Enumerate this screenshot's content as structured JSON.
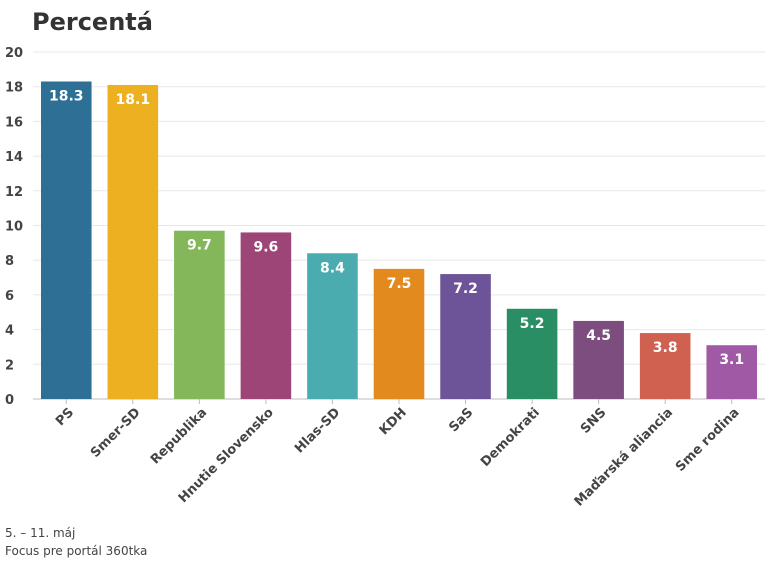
{
  "title": "Percentá",
  "footer": {
    "date": "5. – 11. máj",
    "source": "Focus pre portál 360tka"
  },
  "chart_data": {
    "type": "bar",
    "title": "Percentá",
    "xlabel": "",
    "ylabel": "",
    "ylim": [
      0,
      20
    ],
    "yticks": [
      0,
      2,
      4,
      6,
      8,
      10,
      12,
      14,
      16,
      18,
      20
    ],
    "grid": true,
    "categories": [
      "PS",
      "Smer-SD",
      "Republika",
      "Hnutie Slovensko",
      "Hlas-SD",
      "KDH",
      "SaS",
      "Demokrati",
      "SNS",
      "Maďarská aliancia",
      "Sme rodina"
    ],
    "values": [
      18.3,
      18.1,
      9.7,
      9.6,
      8.4,
      7.5,
      7.2,
      5.2,
      4.5,
      3.8,
      3.1
    ],
    "value_labels": [
      "18.3",
      "18.1",
      "9.7",
      "9.6",
      "8.4",
      "7.5",
      "7.2",
      "5.2",
      "4.5",
      "3.8",
      "3.1"
    ],
    "colors": [
      "#2e6f96",
      "#ecb021",
      "#84b75a",
      "#9d4577",
      "#4bacb0",
      "#e38a1f",
      "#6d5397",
      "#2a8e64",
      "#7c4d7e",
      "#d06050",
      "#a059a5"
    ]
  }
}
